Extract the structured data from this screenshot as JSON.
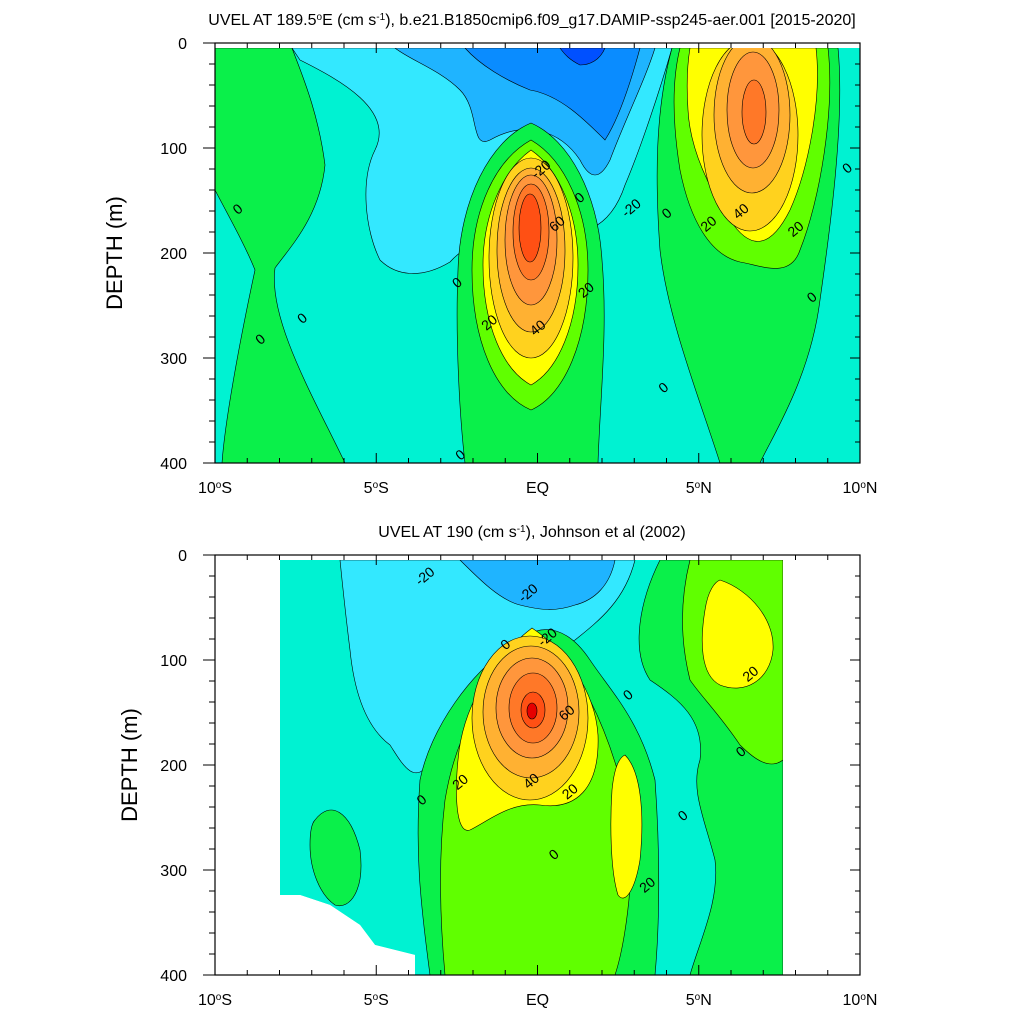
{
  "chart_data": [
    {
      "type": "heatmap",
      "title_main": "UVEL AT 189.5",
      "title_deg": "o",
      "title_mid": "E (cm s",
      "title_sup": "-1",
      "title_tail": "), b.e21.B1850cmip6.f09_g17.DAMIP-ssp245-aer.001 [2015-2020]",
      "xlabel": "",
      "ylabel": "DEPTH (m)",
      "xlim": [
        -10,
        10
      ],
      "ylim": [
        400,
        0
      ],
      "xticks": [
        {
          "value": -10,
          "label": "10",
          "sup": "o",
          "suffix": "S"
        },
        {
          "value": -5,
          "label": "5",
          "sup": "o",
          "suffix": "S"
        },
        {
          "value": 0,
          "label": "EQ",
          "sup": "",
          "suffix": ""
        },
        {
          "value": 5,
          "label": "5",
          "sup": "o",
          "suffix": "N"
        },
        {
          "value": 10,
          "label": "10",
          "sup": "o",
          "suffix": "N"
        }
      ],
      "yticks": [
        0,
        100,
        200,
        300,
        400
      ],
      "contour_levels": [
        -70,
        -60,
        -50,
        -40,
        -30,
        -20,
        -10,
        0,
        10,
        20,
        30,
        40,
        50,
        60,
        70,
        80
      ],
      "contour_labels": [
        {
          "x": 2.9,
          "y": 157,
          "text": "-20"
        },
        {
          "x": 0.1,
          "y": 120,
          "text": "-20"
        },
        {
          "x": 1.3,
          "y": 147,
          "text": "0"
        },
        {
          "x": -9.3,
          "y": 158,
          "text": "0"
        },
        {
          "x": -7.3,
          "y": 262,
          "text": "0"
        },
        {
          "x": -8.6,
          "y": 282,
          "text": "0"
        },
        {
          "x": -2.4,
          "y": 392,
          "text": "0"
        },
        {
          "x": -2.5,
          "y": 228,
          "text": "0"
        },
        {
          "x": 4.0,
          "y": 162,
          "text": "0"
        },
        {
          "x": 3.9,
          "y": 328,
          "text": "0"
        },
        {
          "x": 9.6,
          "y": 119,
          "text": "0"
        },
        {
          "x": 8.5,
          "y": 242,
          "text": "0"
        },
        {
          "x": -1.5,
          "y": 266,
          "text": "20"
        },
        {
          "x": 1.5,
          "y": 235,
          "text": "20"
        },
        {
          "x": 5.3,
          "y": 172,
          "text": "20"
        },
        {
          "x": 8.0,
          "y": 177,
          "text": "20"
        },
        {
          "x": 0.0,
          "y": 271,
          "text": "40"
        },
        {
          "x": 6.3,
          "y": 160,
          "text": "40"
        },
        {
          "x": 0.6,
          "y": 172,
          "text": "60"
        }
      ]
    },
    {
      "type": "heatmap",
      "title_main": "UVEL AT 190 (cm s",
      "title_sup": "-1",
      "title_tail": "), Johnson et al (2002)",
      "xlabel": "",
      "ylabel": "DEPTH (m)",
      "xlim": [
        -10,
        10
      ],
      "ylim": [
        400,
        0
      ],
      "xticks": [
        {
          "value": -10,
          "label": "10",
          "sup": "o",
          "suffix": "S"
        },
        {
          "value": -5,
          "label": "5",
          "sup": "o",
          "suffix": "S"
        },
        {
          "value": 0,
          "label": "EQ",
          "sup": "",
          "suffix": ""
        },
        {
          "value": 5,
          "label": "5",
          "sup": "o",
          "suffix": "N"
        },
        {
          "value": 10,
          "label": "10",
          "sup": "o",
          "suffix": "N"
        }
      ],
      "yticks": [
        0,
        100,
        200,
        300,
        400
      ],
      "data_extent_x": [
        -8,
        8
      ],
      "contour_levels": [
        -70,
        -60,
        -50,
        -40,
        -30,
        -20,
        -10,
        0,
        10,
        20,
        30,
        40,
        50,
        60,
        70,
        80
      ],
      "contour_labels": [
        {
          "x": -3.5,
          "y": 20,
          "text": "-20"
        },
        {
          "x": -0.3,
          "y": 36,
          "text": "-20"
        },
        {
          "x": 0.3,
          "y": 78,
          "text": "-20"
        },
        {
          "x": -1.0,
          "y": 85,
          "text": "0"
        },
        {
          "x": 2.8,
          "y": 133,
          "text": "0"
        },
        {
          "x": 6.3,
          "y": 187,
          "text": "0"
        },
        {
          "x": -3.6,
          "y": 233,
          "text": "0"
        },
        {
          "x": 0.5,
          "y": 285,
          "text": "0"
        },
        {
          "x": 4.5,
          "y": 248,
          "text": "0"
        },
        {
          "x": 6.6,
          "y": 113,
          "text": "20"
        },
        {
          "x": -2.4,
          "y": 216,
          "text": "20"
        },
        {
          "x": 1.0,
          "y": 225,
          "text": "20"
        },
        {
          "x": 3.4,
          "y": 314,
          "text": "20"
        },
        {
          "x": -0.2,
          "y": 215,
          "text": "40"
        },
        {
          "x": 0.9,
          "y": 150,
          "text": "60"
        }
      ]
    }
  ]
}
